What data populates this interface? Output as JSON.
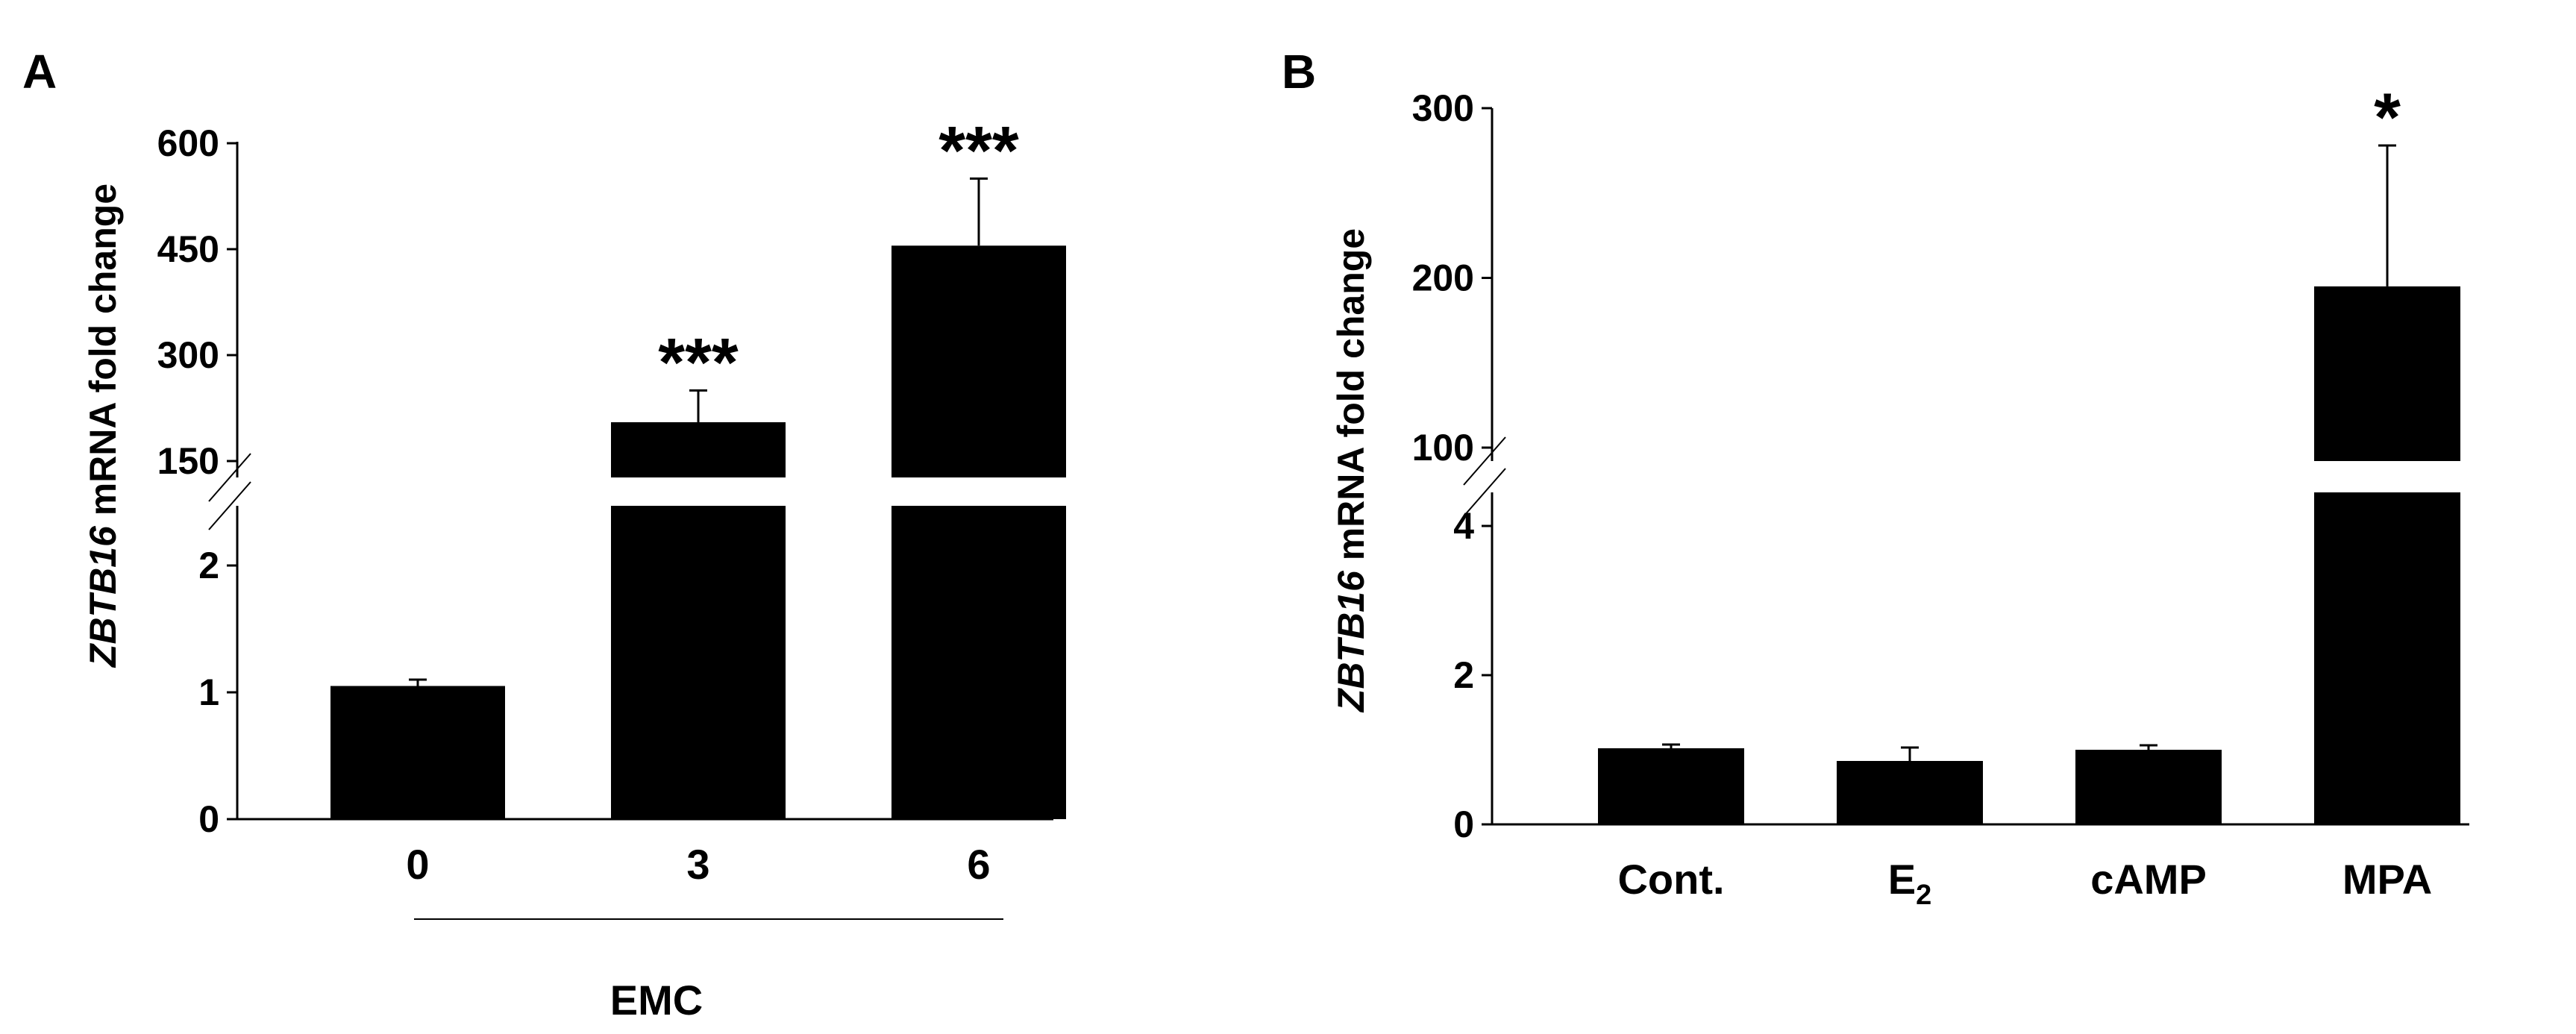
{
  "panels": {
    "A": {
      "letter": "A"
    },
    "B": {
      "letter": "B"
    }
  },
  "chart_data": [
    {
      "type": "bar",
      "panel": "A",
      "ylabel_italic": "ZBTB16",
      "ylabel_rest": " mRNA fold change",
      "xlabel": "EMC",
      "categories": [
        "0",
        "3",
        "6"
      ],
      "values": [
        1.05,
        205,
        455
      ],
      "errors": [
        0.05,
        45,
        95
      ],
      "significance": [
        "",
        "***",
        "***"
      ],
      "bar_color": "#000000",
      "axis_break": true,
      "lower_ylim": [
        0,
        2
      ],
      "upper_ylim": [
        150,
        600
      ],
      "lower_ticks": [
        "0",
        "1",
        "2"
      ],
      "upper_ticks": [
        "150",
        "300",
        "450",
        "600"
      ],
      "grid": false
    },
    {
      "type": "bar",
      "panel": "B",
      "ylabel_italic": "ZBTB16",
      "ylabel_rest": " mRNA fold change",
      "categories": [
        "Cont.",
        "E",
        "cAMP",
        "MPA"
      ],
      "category_subscripts": [
        "",
        "2",
        "",
        ""
      ],
      "values": [
        1.02,
        0.85,
        1.0,
        195
      ],
      "errors": [
        0.05,
        0.18,
        0.06,
        83
      ],
      "significance": [
        "",
        "",
        "",
        "*"
      ],
      "bar_color": "#000000",
      "axis_break": true,
      "lower_ylim": [
        0,
        4
      ],
      "upper_ylim": [
        100,
        300
      ],
      "lower_ticks": [
        "0",
        "2",
        "4"
      ],
      "upper_ticks": [
        "100",
        "200",
        "300"
      ],
      "grid": false
    }
  ]
}
